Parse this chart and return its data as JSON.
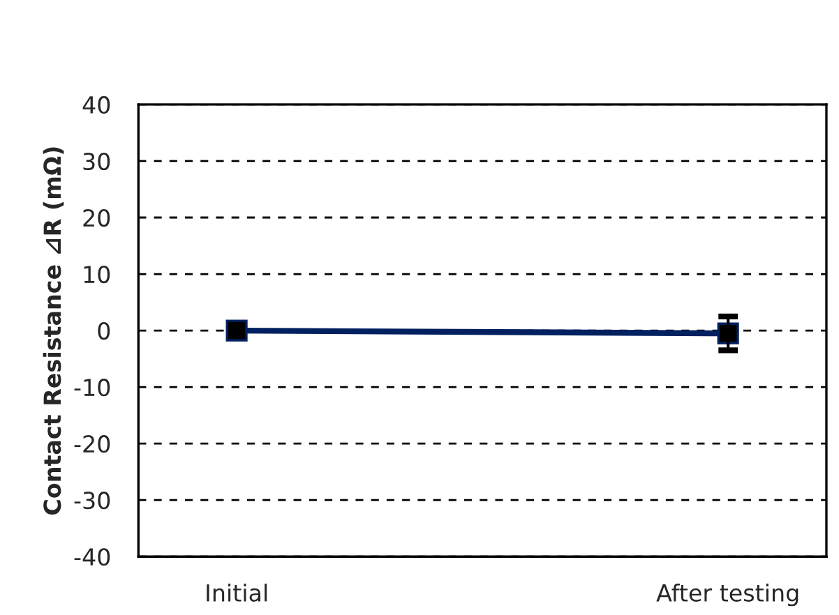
{
  "chart_data": {
    "type": "line",
    "ylabel": "Contact Resistance ⊿R (mΩ)",
    "categories": [
      "Initial",
      "After testing"
    ],
    "series": [
      {
        "color": "#002060",
        "values": [
          0,
          -0.5
        ],
        "errors": [
          null,
          3
        ]
      }
    ],
    "ylim": [
      -40,
      40
    ],
    "yticks": [
      -40,
      -30,
      -20,
      -10,
      0,
      10,
      20,
      30,
      40
    ],
    "grid": "y",
    "marker": "square",
    "line_style": "solid",
    "legend": false
  }
}
